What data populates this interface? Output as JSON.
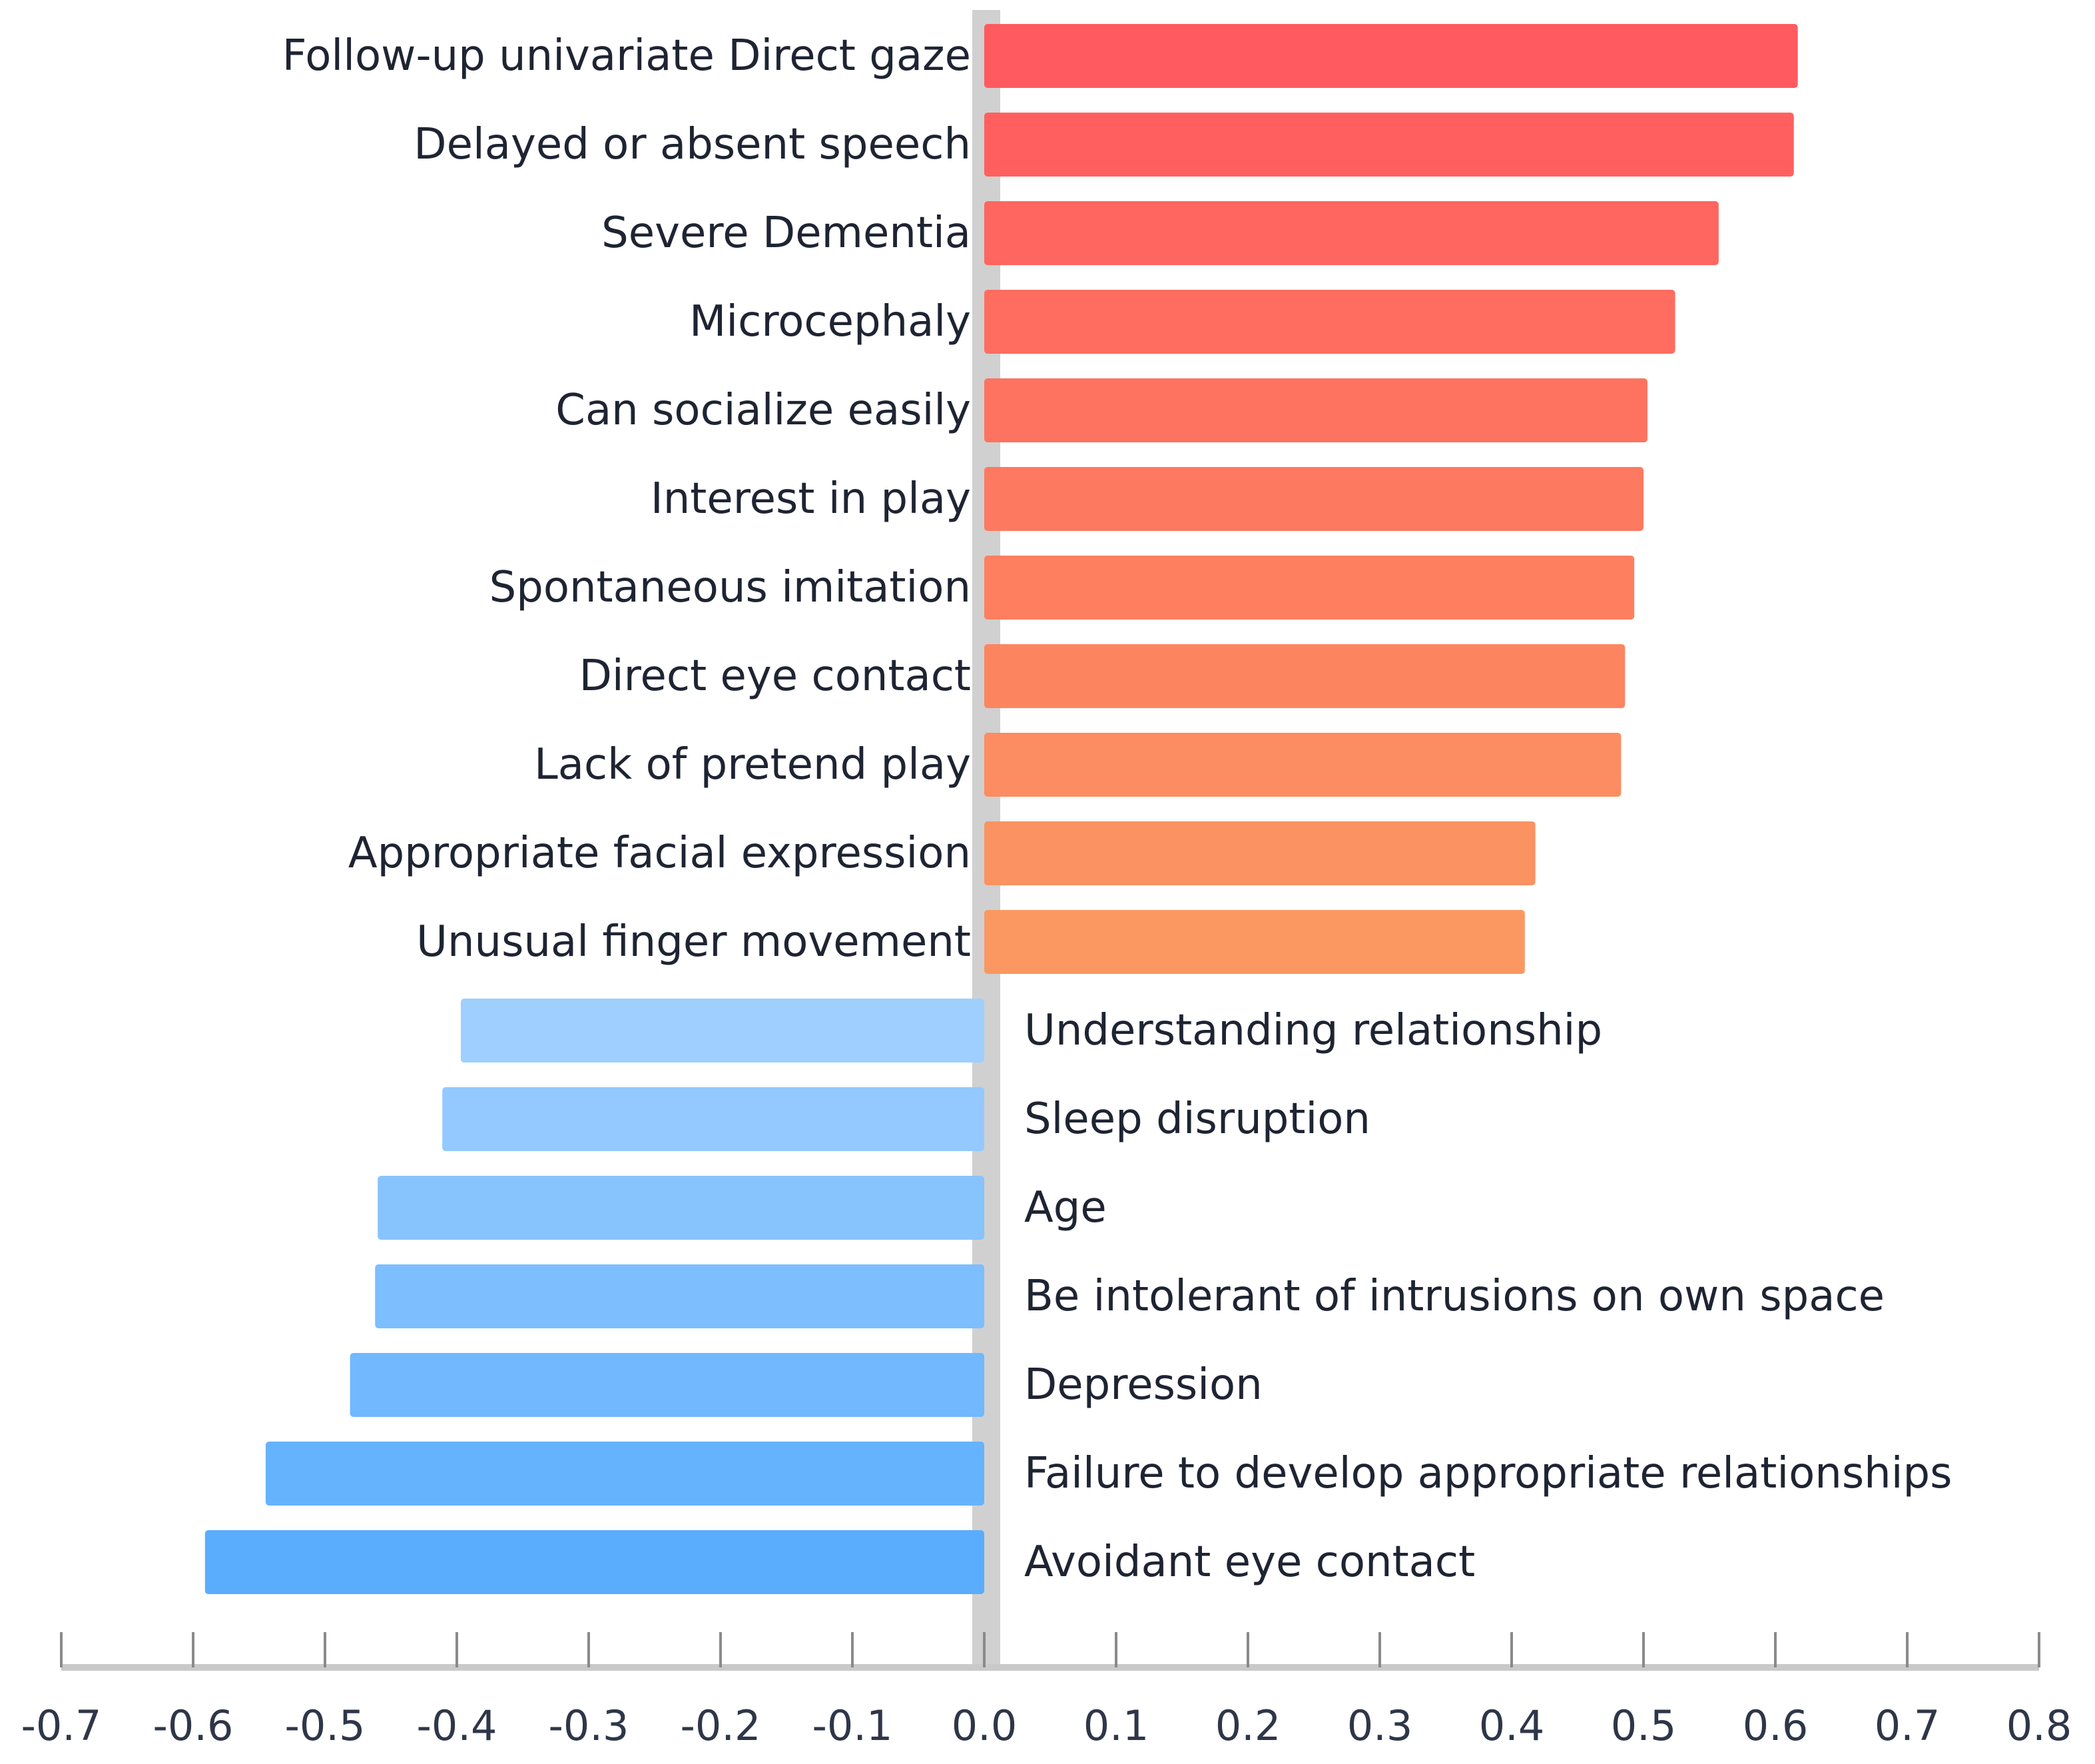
{
  "chart_data": {
    "type": "bar",
    "orientation": "horizontal",
    "categories": [
      "Follow-up univariate Direct gaze",
      "Delayed or absent speech",
      "Severe Dementia",
      "Microcephaly",
      "Can socialize easily",
      "Interest in play",
      "Spontaneous imitation",
      "Direct eye contact",
      "Lack of pretend play",
      "Appropriate facial expression",
      "Unusual finger movement",
      "Understanding relationship",
      "Sleep disruption",
      "Age",
      "Be intolerant of intrusions on own space",
      "Depression",
      "Failure to develop appropriate relationships",
      "Avoidant eye contact"
    ],
    "values": [
      0.617,
      0.614,
      0.557,
      0.524,
      0.503,
      0.5,
      0.493,
      0.486,
      0.483,
      0.418,
      0.41,
      -0.397,
      -0.411,
      -0.46,
      -0.462,
      -0.481,
      -0.545,
      -0.591
    ],
    "xlim": [
      -0.7,
      0.8
    ],
    "xticks": [
      "-0.7",
      "-0.6",
      "-0.5",
      "-0.4",
      "-0.3",
      "-0.2",
      "-0.1",
      "0.0",
      "0.1",
      "0.2",
      "0.3",
      "0.4",
      "0.5",
      "0.6",
      "0.7",
      "0.8"
    ],
    "title": "",
    "xlabel": "",
    "ylabel": "",
    "grid": false,
    "positive_colors": [
      "#ff5a5f",
      "#fb9861"
    ],
    "negative_colors": [
      "#9ecfff",
      "#5aadfd"
    ],
    "zero_line_color": "#d0d0d0"
  }
}
